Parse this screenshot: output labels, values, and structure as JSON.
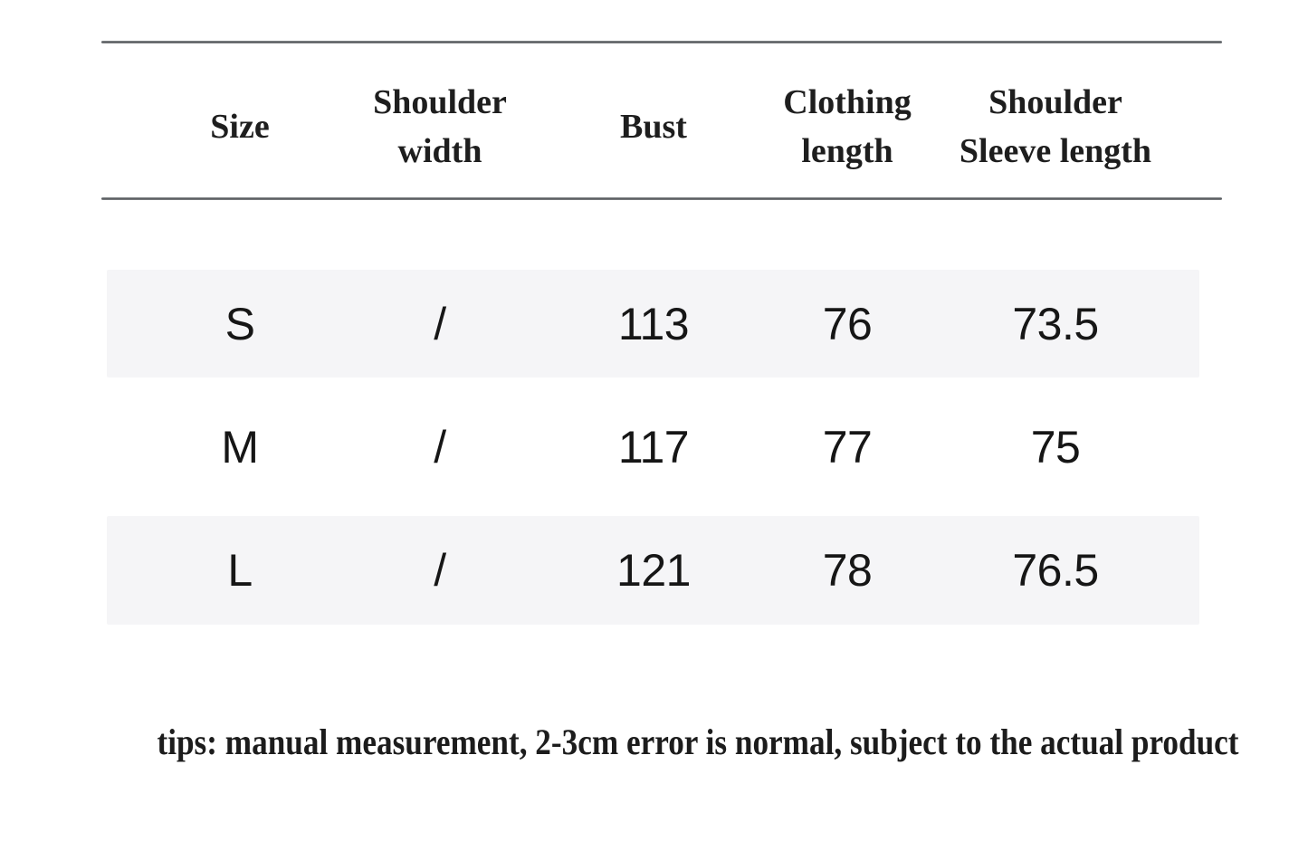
{
  "chart_data": {
    "type": "table",
    "columns": [
      "Size",
      "Shoulder width",
      "Bust",
      "Clothing length",
      "Shoulder Sleeve length"
    ],
    "rows": [
      [
        "S",
        "/",
        "113",
        "76",
        "73.5"
      ],
      [
        "M",
        "/",
        "117",
        "77",
        "75"
      ],
      [
        "L",
        "/",
        "121",
        "78",
        "76.5"
      ]
    ],
    "note": "tips: manual measurement, 2-3cm error is normal, subject to the actual product",
    "layout_hints": {
      "header_rules": "double horizontal rules above and below header",
      "striped_rows": "rows S and L have light gray bands, row M plain"
    }
  },
  "table": {
    "header_display": [
      "Size",
      "Shoulder\nwidth",
      "Bust",
      "Clothing\nlength",
      "Shoulder\nSleeve length"
    ]
  },
  "colors": {
    "rule": "#54575a",
    "row_band": "#f5f5f7",
    "header_text": "#1e1e1e",
    "data_text": "#161616",
    "background": "#ffffff"
  }
}
